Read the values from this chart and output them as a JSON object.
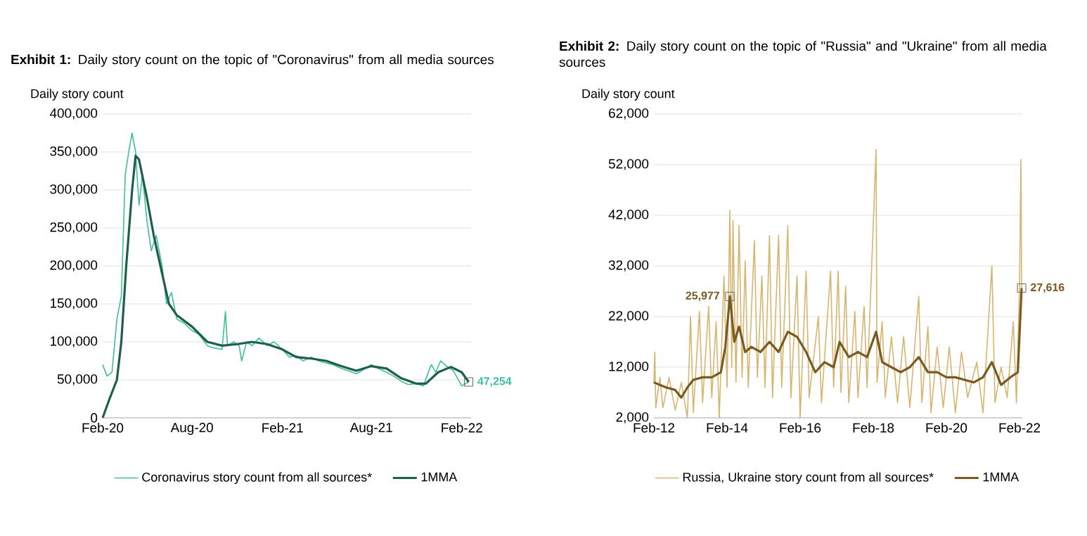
{
  "chart_data": [
    {
      "type": "line",
      "title": "**Exhibit 1:**  Daily story count on the topic of \"Coronavirus\" from all media sources",
      "ylabel": "Daily story count",
      "xlim": [
        "2020-02-01",
        "2022-02-20"
      ],
      "ylim": [
        0,
        400000
      ],
      "xticks": [
        {
          "value": "2020-02-01",
          "label": "Feb-20"
        },
        {
          "value": "2020-08-01",
          "label": "Aug-20"
        },
        {
          "value": "2021-02-01",
          "label": "Feb-21"
        },
        {
          "value": "2021-08-01",
          "label": "Aug-21"
        },
        {
          "value": "2022-02-01",
          "label": "Feb-22"
        }
      ],
      "yticks": [
        0,
        {
          "value": 50000,
          "label": "50,000"
        },
        {
          "value": 100000,
          "label": "100,000"
        },
        {
          "value": 150000,
          "label": "150,000"
        },
        {
          "value": 200000,
          "label": "200,000"
        },
        {
          "value": 250000,
          "label": "250,000"
        },
        {
          "value": 300000,
          "label": "300,000"
        },
        {
          "value": 350000,
          "label": "350,000"
        },
        {
          "value": 400000,
          "label": "400,000"
        }
      ],
      "grid": "y",
      "legend": "bottom",
      "annotations": [
        {
          "text": "47,254",
          "x": "2022-02-15",
          "y": 47254
        }
      ],
      "series": [
        {
          "name": "Coronavirus story count from all sources*",
          "color": "#3dbf9c",
          "x": [
            "2020-02-01",
            "2020-02-10",
            "2020-02-20",
            "2020-03-01",
            "2020-03-10",
            "2020-03-18",
            "2020-03-25",
            "2020-04-01",
            "2020-04-08",
            "2020-04-15",
            "2020-04-22",
            "2020-05-01",
            "2020-05-10",
            "2020-05-20",
            "2020-06-01",
            "2020-06-10",
            "2020-06-20",
            "2020-07-01",
            "2020-07-15",
            "2020-08-01",
            "2020-08-15",
            "2020-09-01",
            "2020-09-15",
            "2020-10-01",
            "2020-10-08",
            "2020-10-12",
            "2020-10-25",
            "2020-11-05",
            "2020-11-10",
            "2020-11-20",
            "2020-12-01",
            "2020-12-15",
            "2021-01-01",
            "2021-01-15",
            "2021-02-01",
            "2021-02-15",
            "2021-03-01",
            "2021-03-15",
            "2021-04-01",
            "2021-04-15",
            "2021-05-01",
            "2021-05-15",
            "2021-06-01",
            "2021-06-15",
            "2021-07-01",
            "2021-07-15",
            "2021-08-01",
            "2021-08-15",
            "2021-09-01",
            "2021-09-15",
            "2021-10-01",
            "2021-10-15",
            "2021-11-01",
            "2021-11-15",
            "2021-11-25",
            "2021-12-01",
            "2021-12-10",
            "2021-12-20",
            "2022-01-01",
            "2022-01-15",
            "2022-02-01",
            "2022-02-15"
          ],
          "values": [
            70000,
            55000,
            60000,
            130000,
            160000,
            320000,
            350000,
            375000,
            350000,
            280000,
            320000,
            260000,
            220000,
            240000,
            200000,
            150000,
            165000,
            130000,
            125000,
            115000,
            110000,
            95000,
            92000,
            90000,
            140000,
            95000,
            100000,
            95000,
            75000,
            100000,
            95000,
            105000,
            95000,
            100000,
            90000,
            80000,
            82000,
            75000,
            80000,
            75000,
            72000,
            70000,
            65000,
            62000,
            58000,
            63000,
            70000,
            65000,
            60000,
            55000,
            48000,
            44000,
            45000,
            42000,
            60000,
            70000,
            60000,
            75000,
            68000,
            62000,
            42000,
            47254
          ]
        },
        {
          "name": "1MMA",
          "color": "#1f5e4c",
          "x": [
            "2020-02-01",
            "2020-02-15",
            "2020-03-01",
            "2020-03-10",
            "2020-03-20",
            "2020-04-01",
            "2020-04-08",
            "2020-04-15",
            "2020-05-01",
            "2020-05-15",
            "2020-06-01",
            "2020-06-15",
            "2020-07-01",
            "2020-08-01",
            "2020-09-01",
            "2020-10-01",
            "2020-11-01",
            "2020-12-01",
            "2021-01-01",
            "2021-02-01",
            "2021-03-01",
            "2021-04-01",
            "2021-05-01",
            "2021-06-01",
            "2021-07-01",
            "2021-08-01",
            "2021-09-01",
            "2021-10-01",
            "2021-11-01",
            "2021-11-20",
            "2021-12-15",
            "2022-01-10",
            "2022-02-01",
            "2022-02-15"
          ],
          "values": [
            0,
            25000,
            50000,
            100000,
            200000,
            300000,
            345000,
            340000,
            290000,
            240000,
            190000,
            150000,
            135000,
            120000,
            100000,
            95000,
            97000,
            100000,
            97000,
            90000,
            80000,
            78000,
            75000,
            68000,
            62000,
            68000,
            65000,
            52000,
            45000,
            45000,
            60000,
            67000,
            60000,
            47254
          ]
        }
      ]
    },
    {
      "type": "line",
      "title": "**Exhibit 2:**  Daily story count on the topic of \"Russia\" and \"Ukraine\" from all media sources",
      "ylabel": "Daily story count",
      "xlim": [
        "2012-02-01",
        "2022-03-01"
      ],
      "ylim": [
        2000,
        62000
      ],
      "xticks": [
        {
          "value": "2012-02-01",
          "label": "Feb-12"
        },
        {
          "value": "2014-02-01",
          "label": "Feb-14"
        },
        {
          "value": "2016-02-01",
          "label": "Feb-16"
        },
        {
          "value": "2018-02-01",
          "label": "Feb-18"
        },
        {
          "value": "2020-02-01",
          "label": "Feb-20"
        },
        {
          "value": "2022-02-01",
          "label": "Feb-22"
        }
      ],
      "yticks": [
        {
          "value": 2000,
          "label": "2,000"
        },
        {
          "value": 12000,
          "label": "12,000"
        },
        {
          "value": 22000,
          "label": "22,000"
        },
        {
          "value": 32000,
          "label": "32,000"
        },
        {
          "value": 42000,
          "label": "42,000"
        },
        {
          "value": 52000,
          "label": "52,000"
        },
        {
          "value": 62000,
          "label": "62,000"
        }
      ],
      "grid": "y",
      "legend": "bottom",
      "annotations": [
        {
          "text": "25,977",
          "x": "2014-03-01",
          "y": 25977
        },
        {
          "text": "27,616",
          "x": "2022-02-22",
          "y": 27616
        }
      ],
      "series": [
        {
          "name": "Russia, Ukraine story count from all sources*",
          "color": "#d6b56e",
          "x": [
            "2012-02-01",
            "2012-02-10",
            "2012-02-20",
            "2012-04-01",
            "2012-05-01",
            "2012-07-01",
            "2012-09-01",
            "2012-11-01",
            "2013-01-01",
            "2013-02-01",
            "2013-03-01",
            "2013-05-01",
            "2013-06-01",
            "2013-08-01",
            "2013-09-01",
            "2013-10-15",
            "2013-11-15",
            "2014-01-01",
            "2014-02-01",
            "2014-03-01",
            "2014-03-20",
            "2014-04-01",
            "2014-05-01",
            "2014-06-01",
            "2014-07-01",
            "2014-08-01",
            "2014-09-01",
            "2014-11-01",
            "2014-12-01",
            "2015-01-15",
            "2015-02-15",
            "2015-04-01",
            "2015-05-01",
            "2015-07-01",
            "2015-08-01",
            "2015-10-01",
            "2015-11-01",
            "2016-01-01",
            "2016-02-01",
            "2016-04-01",
            "2016-05-01",
            "2016-08-01",
            "2016-09-01",
            "2016-12-01",
            "2017-01-01",
            "2017-02-15",
            "2017-03-15",
            "2017-05-01",
            "2017-06-01",
            "2017-08-01",
            "2017-09-01",
            "2017-11-01",
            "2017-12-01",
            "2018-03-01",
            "2018-03-10",
            "2018-05-01",
            "2018-06-01",
            "2018-08-01",
            "2018-10-01",
            "2018-12-01",
            "2019-02-01",
            "2019-05-01",
            "2019-06-01",
            "2019-08-01",
            "2019-09-01",
            "2019-11-01",
            "2020-01-01",
            "2020-03-01",
            "2020-05-01",
            "2020-07-01",
            "2020-09-01",
            "2020-12-01",
            "2021-02-01",
            "2021-05-01",
            "2021-06-01",
            "2021-08-01",
            "2021-10-01",
            "2021-12-01",
            "2022-01-01",
            "2022-02-01",
            "2022-02-15",
            "2022-02-22"
          ],
          "values": [
            9000,
            15000,
            4000,
            10000,
            4000,
            10000,
            3500,
            9000,
            2000,
            22000,
            3000,
            23000,
            5000,
            24000,
            6000,
            21000,
            2000,
            30000,
            8000,
            43000,
            12000,
            41000,
            9000,
            40000,
            10000,
            33000,
            8000,
            37000,
            10000,
            30000,
            8000,
            38000,
            6000,
            38000,
            8000,
            40000,
            6000,
            30000,
            2000,
            31000,
            6000,
            22000,
            5000,
            31000,
            8000,
            31000,
            7000,
            28000,
            5000,
            23000,
            6000,
            24000,
            8000,
            55000,
            9000,
            21000,
            6000,
            18000,
            5000,
            18000,
            4000,
            26000,
            5000,
            20000,
            3000,
            16000,
            4000,
            16000,
            3000,
            15000,
            6000,
            13000,
            3000,
            32000,
            5000,
            12000,
            6000,
            21000,
            5000,
            28000,
            53000,
            27616
          ]
        },
        {
          "name": "1MMA",
          "color": "#7a5a1e",
          "x": [
            "2012-02-01",
            "2012-06-01",
            "2012-09-01",
            "2012-11-01",
            "2013-01-01",
            "2013-03-01",
            "2013-06-01",
            "2013-09-01",
            "2013-12-01",
            "2014-01-15",
            "2014-03-01",
            "2014-04-15",
            "2014-06-01",
            "2014-08-01",
            "2014-10-01",
            "2015-01-01",
            "2015-04-01",
            "2015-07-01",
            "2015-10-01",
            "2016-01-01",
            "2016-04-01",
            "2016-07-01",
            "2016-10-01",
            "2017-01-01",
            "2017-03-01",
            "2017-06-01",
            "2017-09-01",
            "2017-12-01",
            "2018-03-01",
            "2018-05-01",
            "2018-08-01",
            "2018-11-01",
            "2019-02-01",
            "2019-05-01",
            "2019-08-01",
            "2019-11-01",
            "2020-02-01",
            "2020-05-01",
            "2020-08-01",
            "2020-11-01",
            "2021-02-01",
            "2021-05-01",
            "2021-08-01",
            "2021-11-01",
            "2022-01-15",
            "2022-02-22"
          ],
          "values": [
            9000,
            8000,
            7500,
            6000,
            8000,
            9500,
            10000,
            10000,
            11000,
            16000,
            25977,
            17000,
            20000,
            15000,
            16000,
            15000,
            17000,
            15000,
            19000,
            18000,
            15000,
            11000,
            13000,
            12000,
            17000,
            14000,
            15000,
            14000,
            19000,
            13000,
            12000,
            11000,
            12000,
            14000,
            11000,
            11000,
            10000,
            10000,
            9500,
            9000,
            10000,
            13000,
            8500,
            10000,
            11000,
            27616
          ]
        }
      ]
    }
  ]
}
